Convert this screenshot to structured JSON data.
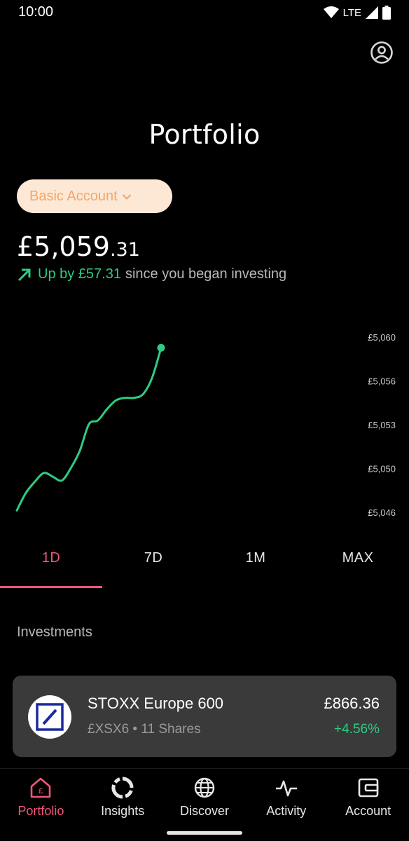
{
  "status_bar": {
    "time": "10:00",
    "network": "LTE"
  },
  "header": {
    "title": "Portfolio"
  },
  "account_selector": {
    "label": "Basic Account"
  },
  "balance": {
    "main": "£5,059",
    "cents": ".31"
  },
  "change": {
    "up_text": "Up by £57.31",
    "since_text": "since you began investing"
  },
  "chart_data": {
    "type": "line",
    "y_ticks": [
      "£5,060",
      "£5,056",
      "£5,053",
      "£5,050",
      "£5,046"
    ],
    "ylim": [
      5046,
      5060
    ],
    "series": [
      {
        "values": [
          5046.2,
          5047.6,
          5048.5,
          5049.2,
          5048.9,
          5048.6,
          5049.6,
          5051.0,
          5053.1,
          5053.4,
          5054.3,
          5055.0,
          5055.2,
          5055.2,
          5055.5,
          5056.8,
          5059.2
        ]
      }
    ],
    "colors": {
      "line": "#2ecc83"
    }
  },
  "ranges": {
    "items": [
      "1D",
      "7D",
      "1M",
      "MAX"
    ],
    "active": "1D"
  },
  "investments": {
    "title": "Investments",
    "items": [
      {
        "name": "STOXX Europe 600",
        "ticker": "£XSX6",
        "shares": "11 Shares",
        "value": "£866.36",
        "change": "+4.56%"
      }
    ]
  },
  "nav": {
    "items": [
      {
        "label": "Portfolio",
        "icon": "home-pound-icon"
      },
      {
        "label": "Insights",
        "icon": "donut-chart-icon"
      },
      {
        "label": "Discover",
        "icon": "globe-icon"
      },
      {
        "label": "Activity",
        "icon": "activity-pulse-icon"
      },
      {
        "label": "Account",
        "icon": "wallet-icon"
      }
    ],
    "active": "Portfolio"
  },
  "colors": {
    "accent": "#f0567a",
    "positive": "#2ecc83",
    "pill_bg": "#fde8d6",
    "pill_text": "#f2a76d"
  }
}
